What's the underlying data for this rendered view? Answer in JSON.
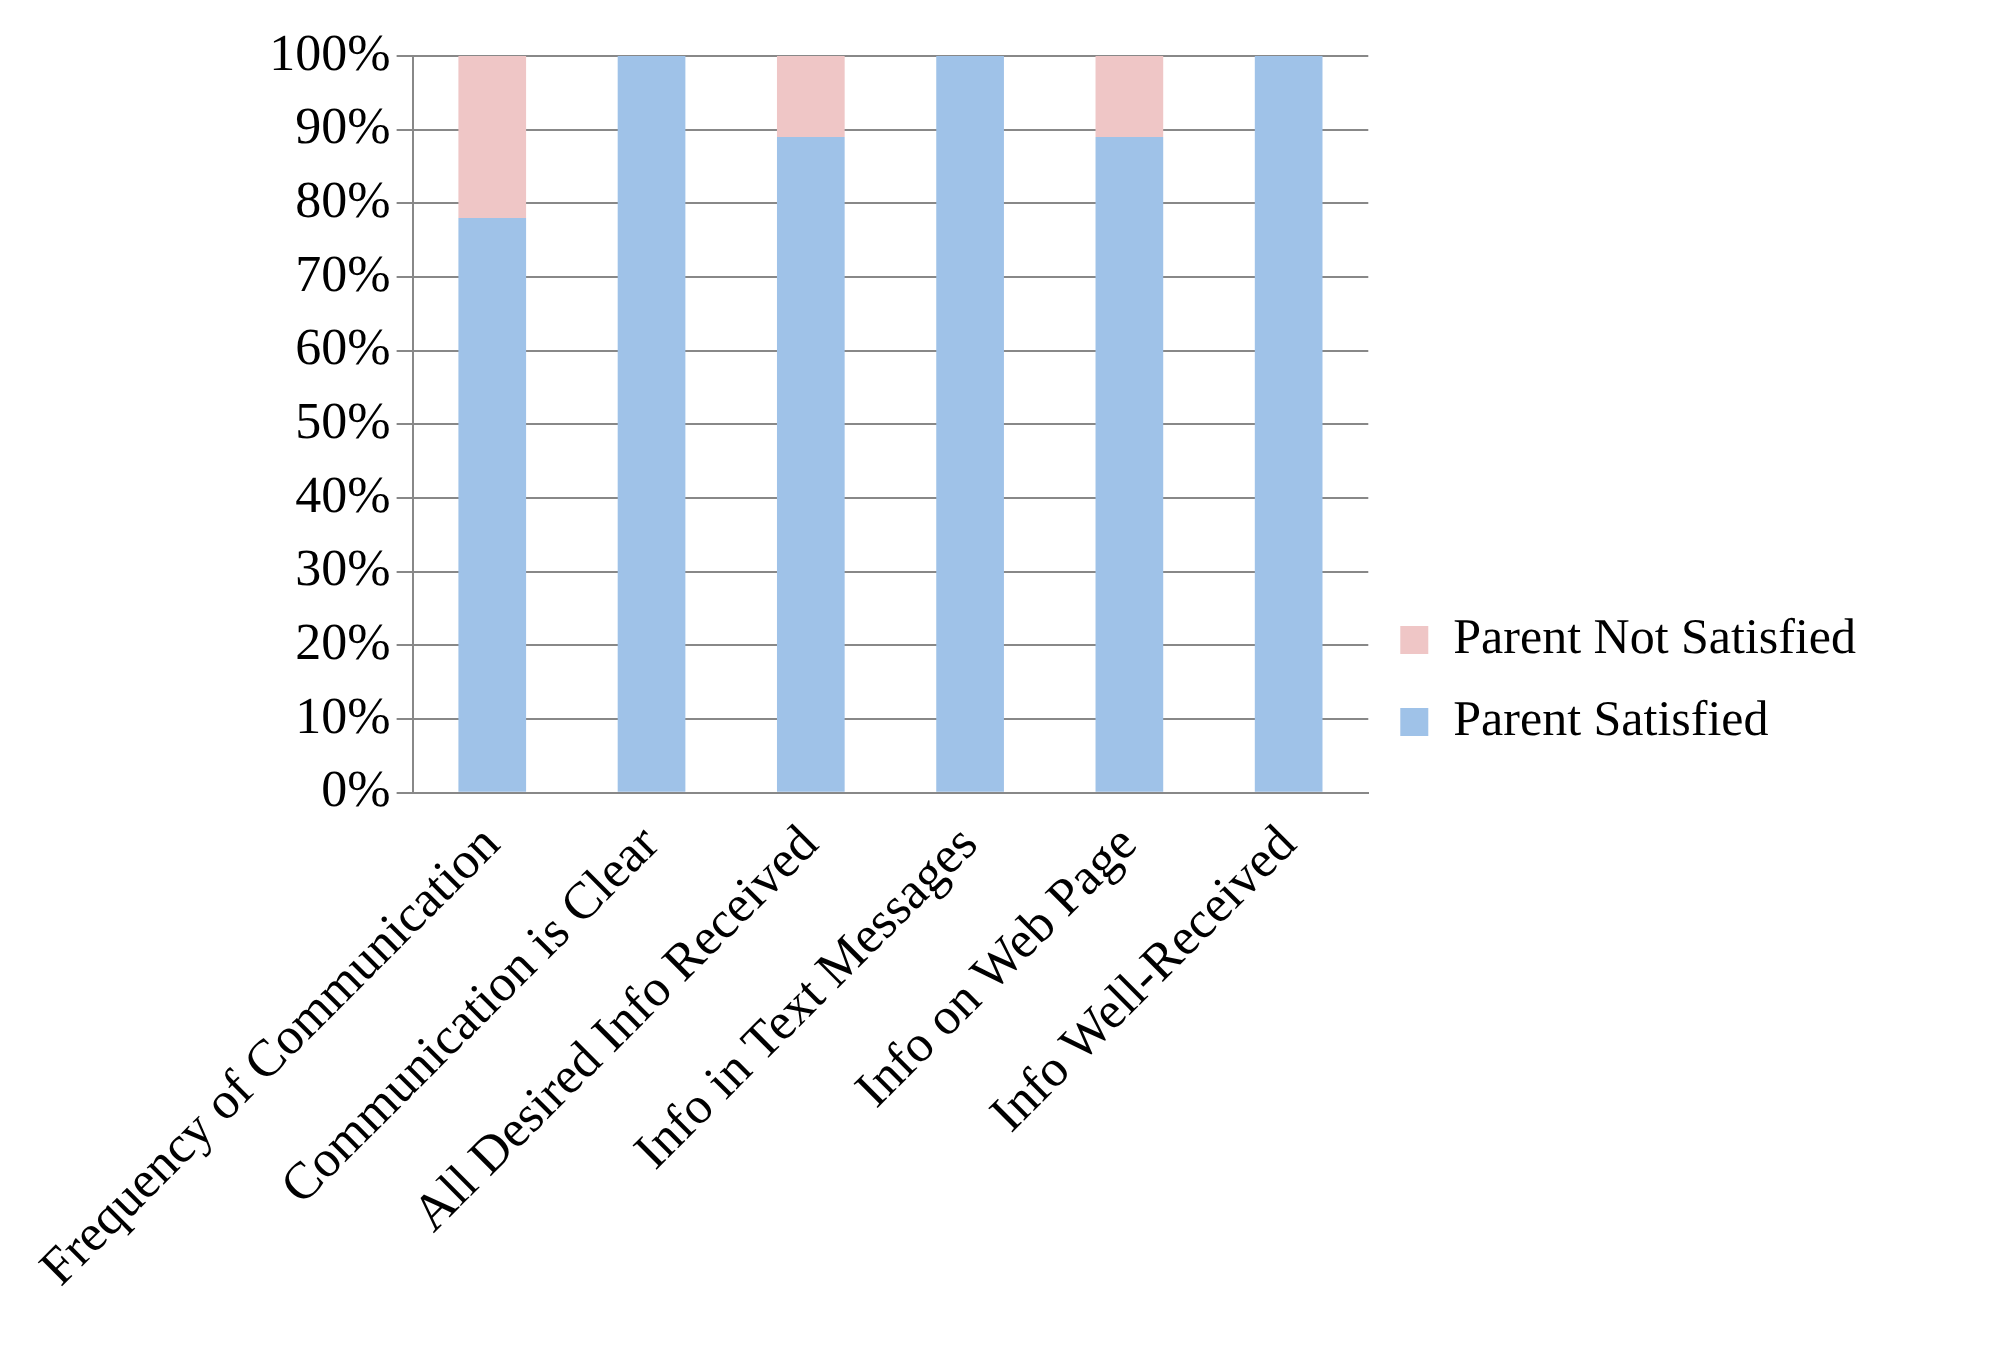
{
  "chart_data": {
    "type": "bar",
    "categories": [
      "Frequency of Communication",
      "Communication is Clear",
      "All Desired Info Received",
      "Info in Text Messages",
      "Info on Web Page",
      "Info Well-Received"
    ],
    "series": [
      {
        "name": "Parent Satisfied",
        "color": "#9fc2e8",
        "values": [
          78,
          100,
          89,
          100,
          89,
          100
        ]
      },
      {
        "name": "Parent Not Satisfied",
        "color": "#efc6c6",
        "values": [
          22,
          0,
          11,
          0,
          11,
          0
        ]
      }
    ],
    "stacked": true,
    "ylim": [
      0,
      100
    ],
    "yticks": [
      {
        "value": 0,
        "label": "0%"
      },
      {
        "value": 10,
        "label": "10%"
      },
      {
        "value": 20,
        "label": "20%"
      },
      {
        "value": 30,
        "label": "30%"
      },
      {
        "value": 40,
        "label": "40%"
      },
      {
        "value": 50,
        "label": "50%"
      },
      {
        "value": 60,
        "label": "60%"
      },
      {
        "value": 70,
        "label": "70%"
      },
      {
        "value": 80,
        "label": "80%"
      },
      {
        "value": 90,
        "label": "90%"
      },
      {
        "value": 100,
        "label": "100%"
      }
    ],
    "grid": "y",
    "legend": "right"
  }
}
